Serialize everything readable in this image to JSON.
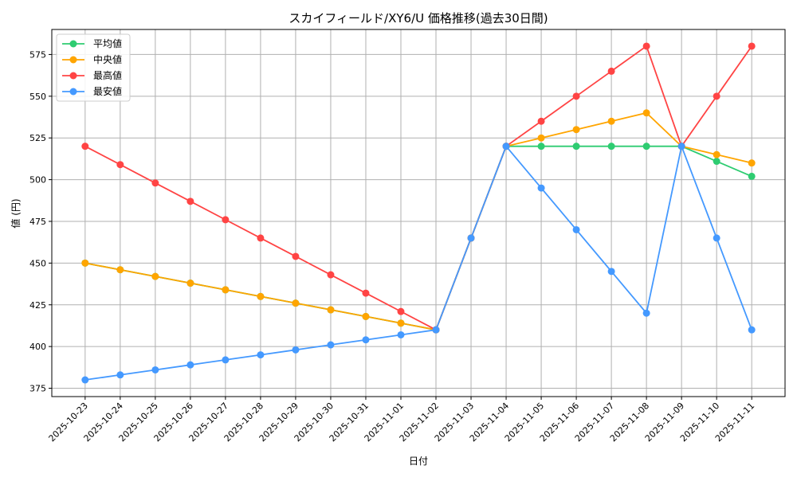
{
  "chart_data": {
    "type": "line",
    "title": "スカイフィールド/XY6/U 価格推移(過去30日間)",
    "xlabel": "日付",
    "ylabel": "値 (円)",
    "ylim": [
      370,
      590
    ],
    "yticks": [
      375,
      400,
      425,
      450,
      475,
      500,
      525,
      550,
      575
    ],
    "grid": true,
    "legend_position": "top-left",
    "x": [
      "2025-10-23",
      "2025-10-24",
      "2025-10-25",
      "2025-10-26",
      "2025-10-27",
      "2025-10-28",
      "2025-10-29",
      "2025-10-30",
      "2025-10-31",
      "2025-11-01",
      "2025-11-02",
      "2025-11-03",
      "2025-11-04",
      "2025-11-05",
      "2025-11-06",
      "2025-11-07",
      "2025-11-08",
      "2025-11-09",
      "2025-11-10",
      "2025-11-11"
    ],
    "series": [
      {
        "name": "平均値",
        "color": "#2ecc71",
        "values": [
          450,
          446,
          442,
          438,
          434,
          430,
          426,
          422,
          418,
          414,
          410,
          465,
          520,
          520,
          520,
          520,
          520,
          520,
          511,
          502
        ]
      },
      {
        "name": "中央値",
        "color": "#ffa500",
        "values": [
          450,
          446,
          442,
          438,
          434,
          430,
          426,
          422,
          418,
          414,
          410,
          465,
          520,
          525,
          530,
          535,
          540,
          520,
          515,
          510
        ]
      },
      {
        "name": "最高値",
        "color": "#ff4444",
        "values": [
          520,
          509,
          498,
          487,
          476,
          465,
          454,
          443,
          432,
          421,
          410,
          465,
          520,
          535,
          550,
          565,
          580,
          520,
          550,
          580
        ]
      },
      {
        "name": "最安値",
        "color": "#4499ff",
        "values": [
          380,
          383,
          386,
          389,
          392,
          395,
          398,
          401,
          404,
          407,
          410,
          465,
          520,
          495,
          470,
          445,
          420,
          520,
          465,
          410
        ]
      }
    ]
  }
}
